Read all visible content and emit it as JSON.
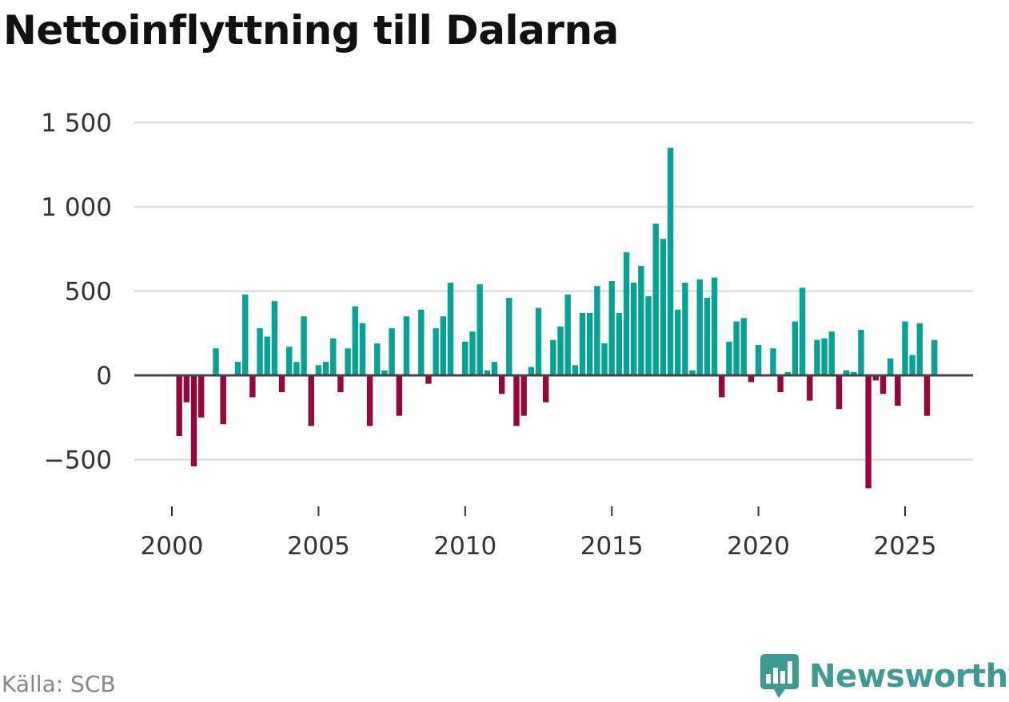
{
  "title": "Nettoinflyttning till Dalarna",
  "source": "Källa: SCB",
  "brand": "Newsworthy",
  "colors": {
    "positive": "#08a196",
    "negative": "#95063d",
    "grid": "#dddddd",
    "zero": "#444444",
    "brand": "#3e9a93"
  },
  "chart_data": {
    "type": "bar",
    "title": "Nettoinflyttning till Dalarna",
    "xlabel": "",
    "ylabel": "",
    "ylim": [
      -700,
      1500
    ],
    "y_ticks": [
      -500,
      0,
      500,
      1000,
      1500
    ],
    "y_tick_labels": [
      "−500",
      "0",
      "500",
      "1 000",
      "1 500"
    ],
    "x_ticks": [
      2000,
      2005,
      2010,
      2015,
      2020,
      2025
    ],
    "x_tick_labels": [
      "2000",
      "2005",
      "2010",
      "2015",
      "2020",
      "2025"
    ],
    "grid": true,
    "period": "quarterly",
    "start": 2000.25,
    "step": 0.25,
    "values": [
      -360,
      -160,
      -540,
      -250,
      0,
      160,
      -290,
      0,
      80,
      480,
      -130,
      280,
      230,
      440,
      -100,
      170,
      80,
      350,
      -300,
      60,
      80,
      220,
      -100,
      160,
      410,
      310,
      -300,
      190,
      30,
      280,
      -240,
      350,
      0,
      390,
      -50,
      280,
      350,
      550,
      0,
      200,
      260,
      540,
      30,
      80,
      -110,
      460,
      -300,
      -240,
      50,
      400,
      -160,
      210,
      290,
      480,
      60,
      370,
      370,
      530,
      190,
      560,
      370,
      730,
      550,
      650,
      470,
      900,
      810,
      1350,
      390,
      550,
      30,
      570,
      460,
      580,
      -130,
      200,
      320,
      340,
      -40,
      180,
      0,
      160,
      -100,
      20,
      320,
      520,
      -150,
      210,
      220,
      260,
      -200,
      30,
      20,
      270,
      -670,
      -30,
      -110,
      100,
      -180,
      320,
      120,
      310,
      -240,
      210
    ]
  }
}
